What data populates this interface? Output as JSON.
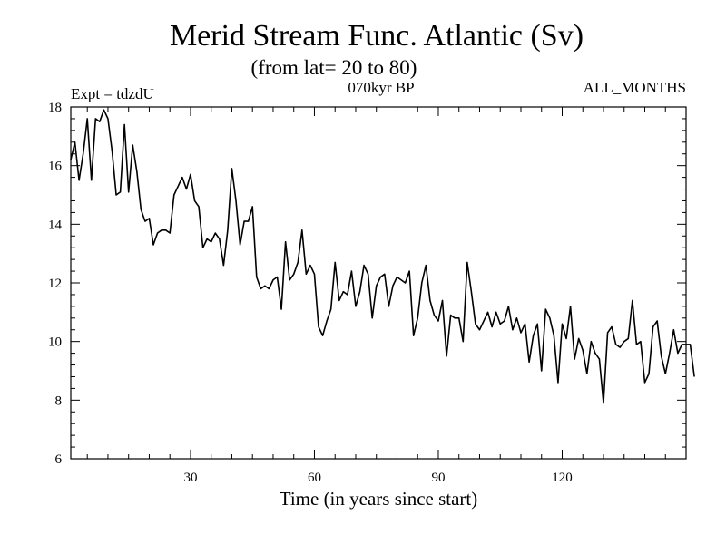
{
  "chart_data": {
    "type": "line",
    "title": "Merid Stream Func. Atlantic (Sv)",
    "subtitle": "(from lat= 20 to 80)",
    "label_left": "Expt = tdzdU",
    "label_center": "070kyr BP",
    "label_right": "ALL_MONTHS",
    "xlabel": "Time (in years since start)",
    "ylabel": "",
    "xlim": [
      1,
      150
    ],
    "ylim": [
      6,
      18
    ],
    "xticks": [
      30,
      60,
      90,
      120
    ],
    "yticks": [
      6,
      8,
      10,
      12,
      14,
      16,
      18
    ],
    "x_start": 1,
    "x_step": 1,
    "series": [
      {
        "name": "Merid Stream Func. Atlantic",
        "color": "#000000",
        "values": [
          16.2,
          16.8,
          15.5,
          16.4,
          17.6,
          15.5,
          17.6,
          17.5,
          17.9,
          17.6,
          16.5,
          15.0,
          15.1,
          17.4,
          15.1,
          16.7,
          15.8,
          14.5,
          14.1,
          14.2,
          13.3,
          13.7,
          13.8,
          13.8,
          13.7,
          15.0,
          15.3,
          15.6,
          15.2,
          15.7,
          14.8,
          14.6,
          13.2,
          13.5,
          13.4,
          13.7,
          13.5,
          12.6,
          13.8,
          15.9,
          14.8,
          13.3,
          14.1,
          14.1,
          14.6,
          12.2,
          11.8,
          11.9,
          11.8,
          12.1,
          12.2,
          11.1,
          13.4,
          12.1,
          12.3,
          12.7,
          13.8,
          12.3,
          12.6,
          12.3,
          10.5,
          10.2,
          10.7,
          11.1,
          12.7,
          11.4,
          11.7,
          11.6,
          12.4,
          11.2,
          11.7,
          12.6,
          12.3,
          10.8,
          11.9,
          12.2,
          12.3,
          11.2,
          11.9,
          12.2,
          12.1,
          12.0,
          12.4,
          10.2,
          10.8,
          12.0,
          12.6,
          11.4,
          10.9,
          10.7,
          11.4,
          9.5,
          10.9,
          10.8,
          10.8,
          10.0,
          12.7,
          11.7,
          10.6,
          10.4,
          10.7,
          11.0,
          10.5,
          11.0,
          10.6,
          10.7,
          11.2,
          10.4,
          10.8,
          10.3,
          10.6,
          9.3,
          10.2,
          10.6,
          9.0,
          11.1,
          10.8,
          10.2,
          8.6,
          10.6,
          10.1,
          11.2,
          9.4,
          10.1,
          9.7,
          8.9,
          10.0,
          9.6,
          9.4,
          7.9,
          10.3,
          10.5,
          9.9,
          9.8,
          10.0,
          10.1,
          11.4,
          9.9,
          10.0,
          8.6,
          8.9,
          10.5,
          10.7,
          9.5,
          8.9,
          9.6,
          10.4,
          9.6,
          9.9,
          9.9,
          9.9,
          8.8
        ]
      }
    ]
  }
}
